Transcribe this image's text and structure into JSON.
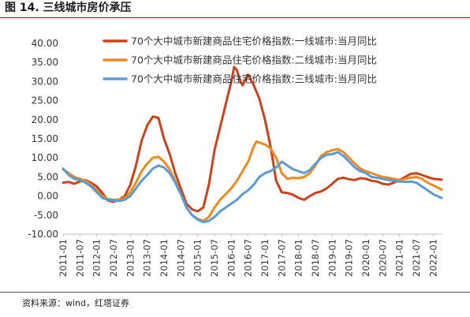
{
  "figure": {
    "title": "图 14. 三线城市房价承压",
    "source": "资料来源：wind，红塔证券"
  },
  "chart_data": {
    "type": "line",
    "title": "",
    "xlabel": "",
    "ylabel": "",
    "ylim": [
      -10,
      40
    ],
    "yticks": [
      "40.00",
      "35.00",
      "30.00",
      "25.00",
      "20.00",
      "15.00",
      "10.00",
      "5.00",
      "0.00",
      "-5.00",
      "-10.00"
    ],
    "xticks": [
      "2011-01",
      "2011-07",
      "2012-01",
      "2012-07",
      "2013-01",
      "2013-07",
      "2014-01",
      "2014-07",
      "2015-01",
      "2015-07",
      "2016-01",
      "2016-07",
      "2017-01",
      "2017-07",
      "2018-01",
      "2018-07",
      "2019-01",
      "2019-07",
      "2020-01",
      "2020-07",
      "2021-01",
      "2021-07",
      "2022-01"
    ],
    "x_start": "2011-01",
    "x_end": "2022-04",
    "grid": false,
    "legend_position": "top",
    "series": [
      {
        "name": "70个大中城市新建商品住宅价格指数:一线城市:当月同比",
        "color": "#c8431b",
        "points": [
          [
            "2011-01",
            3.5
          ],
          [
            "2011-03",
            3.7
          ],
          [
            "2011-05",
            3.2
          ],
          [
            "2011-07",
            3.8
          ],
          [
            "2011-09",
            4.2
          ],
          [
            "2011-11",
            3.5
          ],
          [
            "2012-01",
            2.5
          ],
          [
            "2012-03",
            0.8
          ],
          [
            "2012-05",
            -1.2
          ],
          [
            "2012-07",
            -1.5
          ],
          [
            "2012-09",
            -0.9
          ],
          [
            "2012-11",
            0.0
          ],
          [
            "2013-01",
            3.0
          ],
          [
            "2013-03",
            8.0
          ],
          [
            "2013-05",
            14.5
          ],
          [
            "2013-07",
            18.5
          ],
          [
            "2013-09",
            20.8
          ],
          [
            "2013-11",
            20.5
          ],
          [
            "2014-01",
            15.0
          ],
          [
            "2014-03",
            11.0
          ],
          [
            "2014-05",
            6.0
          ],
          [
            "2014-07",
            2.0
          ],
          [
            "2014-09",
            -2.0
          ],
          [
            "2014-11",
            -3.5
          ],
          [
            "2015-01",
            -4.0
          ],
          [
            "2015-03",
            -3.0
          ],
          [
            "2015-05",
            3.0
          ],
          [
            "2015-07",
            12.0
          ],
          [
            "2015-09",
            18.0
          ],
          [
            "2015-11",
            24.0
          ],
          [
            "2016-01",
            30.0
          ],
          [
            "2016-02",
            33.8
          ],
          [
            "2016-03",
            33.0
          ],
          [
            "2016-04",
            30.5
          ],
          [
            "2016-05",
            29.0
          ],
          [
            "2016-06",
            30.5
          ],
          [
            "2016-07",
            31.8
          ],
          [
            "2016-09",
            29.0
          ],
          [
            "2016-11",
            25.5
          ],
          [
            "2017-01",
            20.0
          ],
          [
            "2017-03",
            13.0
          ],
          [
            "2017-05",
            4.0
          ],
          [
            "2017-07",
            1.0
          ],
          [
            "2017-09",
            0.8
          ],
          [
            "2017-11",
            0.3
          ],
          [
            "2018-01",
            -0.5
          ],
          [
            "2018-03",
            -1.0
          ],
          [
            "2018-05",
            0.0
          ],
          [
            "2018-07",
            0.8
          ],
          [
            "2018-09",
            1.2
          ],
          [
            "2018-11",
            2.0
          ],
          [
            "2019-01",
            3.2
          ],
          [
            "2019-03",
            4.5
          ],
          [
            "2019-05",
            4.8
          ],
          [
            "2019-07",
            4.4
          ],
          [
            "2019-09",
            4.2
          ],
          [
            "2019-11",
            4.7
          ],
          [
            "2020-01",
            4.5
          ],
          [
            "2020-03",
            4.0
          ],
          [
            "2020-05",
            3.8
          ],
          [
            "2020-07",
            3.2
          ],
          [
            "2020-09",
            3.0
          ],
          [
            "2020-11",
            3.5
          ],
          [
            "2021-01",
            4.2
          ],
          [
            "2021-03",
            5.0
          ],
          [
            "2021-05",
            5.8
          ],
          [
            "2021-07",
            6.0
          ],
          [
            "2021-09",
            5.5
          ],
          [
            "2021-11",
            5.0
          ],
          [
            "2022-01",
            4.5
          ],
          [
            "2022-04",
            4.3
          ]
        ]
      },
      {
        "name": "70个大中城市新建商品住宅价格指数:二线城市:当月同比",
        "color": "#ec8a1e",
        "points": [
          [
            "2011-01",
            7.0
          ],
          [
            "2011-03",
            6.0
          ],
          [
            "2011-05",
            5.0
          ],
          [
            "2011-07",
            4.5
          ],
          [
            "2011-09",
            4.0
          ],
          [
            "2011-11",
            3.0
          ],
          [
            "2012-01",
            1.5
          ],
          [
            "2012-03",
            0.0
          ],
          [
            "2012-05",
            -0.8
          ],
          [
            "2012-07",
            -1.0
          ],
          [
            "2012-09",
            -0.9
          ],
          [
            "2012-11",
            -0.5
          ],
          [
            "2013-01",
            1.0
          ],
          [
            "2013-03",
            3.5
          ],
          [
            "2013-05",
            6.5
          ],
          [
            "2013-07",
            8.5
          ],
          [
            "2013-09",
            10.0
          ],
          [
            "2013-11",
            10.3
          ],
          [
            "2014-01",
            9.0
          ],
          [
            "2014-03",
            7.0
          ],
          [
            "2014-05",
            4.0
          ],
          [
            "2014-07",
            0.5
          ],
          [
            "2014-09",
            -3.0
          ],
          [
            "2014-11",
            -5.0
          ],
          [
            "2015-01",
            -6.0
          ],
          [
            "2015-03",
            -6.5
          ],
          [
            "2015-05",
            -5.5
          ],
          [
            "2015-07",
            -3.0
          ],
          [
            "2015-09",
            -1.0
          ],
          [
            "2015-11",
            0.5
          ],
          [
            "2016-01",
            2.0
          ],
          [
            "2016-03",
            4.0
          ],
          [
            "2016-05",
            6.5
          ],
          [
            "2016-07",
            9.0
          ],
          [
            "2016-09",
            13.0
          ],
          [
            "2016-10",
            14.3
          ],
          [
            "2016-11",
            14.0
          ],
          [
            "2017-01",
            13.5
          ],
          [
            "2017-03",
            12.5
          ],
          [
            "2017-05",
            10.0
          ],
          [
            "2017-07",
            6.0
          ],
          [
            "2017-09",
            4.5
          ],
          [
            "2017-11",
            4.8
          ],
          [
            "2018-01",
            4.7
          ],
          [
            "2018-03",
            5.0
          ],
          [
            "2018-05",
            6.0
          ],
          [
            "2018-07",
            8.0
          ],
          [
            "2018-09",
            10.5
          ],
          [
            "2018-11",
            11.5
          ],
          [
            "2019-01",
            12.0
          ],
          [
            "2019-03",
            12.3
          ],
          [
            "2019-05",
            11.5
          ],
          [
            "2019-07",
            10.0
          ],
          [
            "2019-09",
            8.5
          ],
          [
            "2019-11",
            7.2
          ],
          [
            "2020-01",
            6.5
          ],
          [
            "2020-03",
            6.0
          ],
          [
            "2020-05",
            5.5
          ],
          [
            "2020-07",
            5.0
          ],
          [
            "2020-09",
            4.8
          ],
          [
            "2020-11",
            4.5
          ],
          [
            "2021-01",
            4.2
          ],
          [
            "2021-03",
            4.5
          ],
          [
            "2021-05",
            4.8
          ],
          [
            "2021-07",
            5.0
          ],
          [
            "2021-09",
            4.5
          ],
          [
            "2021-11",
            3.5
          ],
          [
            "2022-01",
            2.8
          ],
          [
            "2022-04",
            1.7
          ]
        ]
      },
      {
        "name": "70个大中城市新建商品住宅价格指数:三线城市:当月同比",
        "color": "#5b9bd5",
        "points": [
          [
            "2011-01",
            7.2
          ],
          [
            "2011-03",
            5.5
          ],
          [
            "2011-05",
            4.5
          ],
          [
            "2011-07",
            4.2
          ],
          [
            "2011-09",
            3.5
          ],
          [
            "2011-11",
            2.5
          ],
          [
            "2012-01",
            1.0
          ],
          [
            "2012-03",
            -0.5
          ],
          [
            "2012-05",
            -1.0
          ],
          [
            "2012-07",
            -1.2
          ],
          [
            "2012-09",
            -1.3
          ],
          [
            "2012-11",
            -1.0
          ],
          [
            "2013-01",
            0.0
          ],
          [
            "2013-03",
            2.0
          ],
          [
            "2013-05",
            4.0
          ],
          [
            "2013-07",
            5.5
          ],
          [
            "2013-09",
            7.2
          ],
          [
            "2013-11",
            8.0
          ],
          [
            "2014-01",
            7.5
          ],
          [
            "2014-03",
            6.0
          ],
          [
            "2014-05",
            3.5
          ],
          [
            "2014-07",
            0.5
          ],
          [
            "2014-09",
            -3.0
          ],
          [
            "2014-11",
            -5.0
          ],
          [
            "2015-01",
            -6.2
          ],
          [
            "2015-03",
            -6.8
          ],
          [
            "2015-05",
            -6.5
          ],
          [
            "2015-07",
            -5.5
          ],
          [
            "2015-09",
            -4.0
          ],
          [
            "2015-11",
            -3.0
          ],
          [
            "2016-01",
            -2.0
          ],
          [
            "2016-03",
            -1.0
          ],
          [
            "2016-05",
            0.5
          ],
          [
            "2016-07",
            1.5
          ],
          [
            "2016-09",
            3.0
          ],
          [
            "2016-11",
            5.0
          ],
          [
            "2017-01",
            6.0
          ],
          [
            "2017-03",
            6.5
          ],
          [
            "2017-05",
            7.5
          ],
          [
            "2017-07",
            9.0
          ],
          [
            "2017-09",
            8.0
          ],
          [
            "2017-11",
            7.0
          ],
          [
            "2018-01",
            6.5
          ],
          [
            "2018-03",
            6.0
          ],
          [
            "2018-05",
            6.8
          ],
          [
            "2018-07",
            8.5
          ],
          [
            "2018-09",
            10.0
          ],
          [
            "2018-11",
            10.8
          ],
          [
            "2019-01",
            11.0
          ],
          [
            "2019-03",
            11.5
          ],
          [
            "2019-05",
            10.5
          ],
          [
            "2019-07",
            9.0
          ],
          [
            "2019-09",
            7.5
          ],
          [
            "2019-11",
            6.5
          ],
          [
            "2020-01",
            6.0
          ],
          [
            "2020-03",
            5.0
          ],
          [
            "2020-05",
            4.8
          ],
          [
            "2020-07",
            4.5
          ],
          [
            "2020-09",
            4.2
          ],
          [
            "2020-11",
            4.0
          ],
          [
            "2021-01",
            3.8
          ],
          [
            "2021-03",
            3.7
          ],
          [
            "2021-05",
            3.8
          ],
          [
            "2021-07",
            3.5
          ],
          [
            "2021-09",
            2.5
          ],
          [
            "2021-11",
            1.5
          ],
          [
            "2022-01",
            0.5
          ],
          [
            "2022-04",
            -0.5
          ]
        ]
      }
    ]
  }
}
